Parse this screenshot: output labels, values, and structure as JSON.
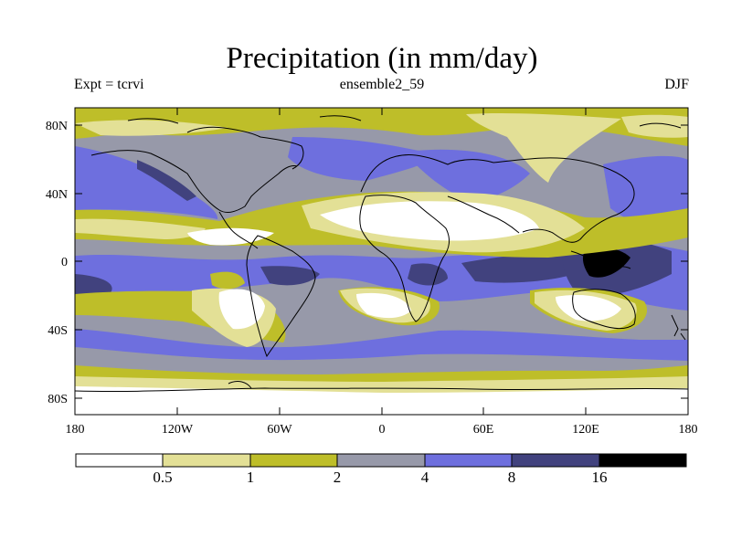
{
  "title": "Precipitation (in mm/day)",
  "experiment": "Expt = tcrvi",
  "ensemble": "ensemble2_59",
  "season": "DJF",
  "lat_labels": [
    "80N",
    "40N",
    "0",
    "40S",
    "80S"
  ],
  "lon_labels": [
    "180",
    "120W",
    "60W",
    "0",
    "60E",
    "120E",
    "180"
  ],
  "colorbar": {
    "labels": [
      "0.5",
      "1",
      "2",
      "4",
      "8",
      "16"
    ],
    "colors": [
      "#ffffff",
      "#e3e096",
      "#bebe29",
      "#9799a9",
      "#6e6fde",
      "#41427e",
      "#000000"
    ]
  },
  "land_color": "#ffffff"
}
